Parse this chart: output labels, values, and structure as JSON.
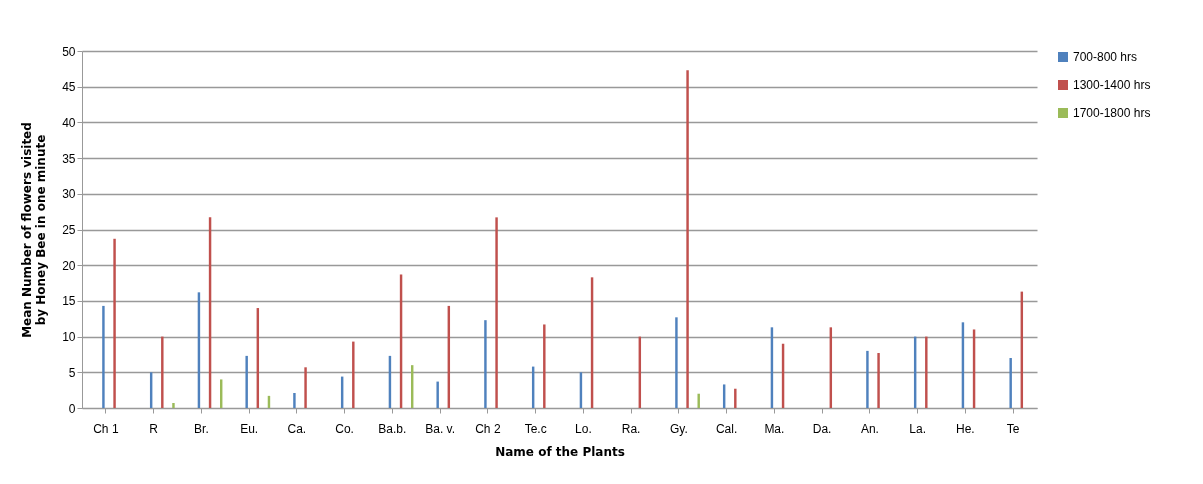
{
  "chart_data": {
    "type": "bar",
    "xlabel": "Name of the Plants",
    "ylabel": "Mean Number of flowers visited by Honey Bee in one minute",
    "categories": [
      "Ch 1",
      "R",
      "Br.",
      "Eu.",
      "Ca.",
      "Co.",
      "Ba.b.",
      "Ba. v.",
      "Ch 2",
      "Te.c",
      "Lo.",
      "Ra.",
      "Gy.",
      "Cal.",
      "Ma.",
      "Da.",
      "An.",
      "La.",
      "He.",
      "Te"
    ],
    "series": [
      {
        "name": "700-800 hrs",
        "color": "#4f81bd",
        "values": [
          14.3,
          5,
          16.2,
          7.3,
          2.1,
          4.4,
          7.3,
          3.7,
          12.3,
          5.8,
          5,
          0,
          12.7,
          3.3,
          11.3,
          0,
          8,
          10,
          12,
          7
        ]
      },
      {
        "name": "1300-1400 hrs",
        "color": "#c0504d",
        "values": [
          23.7,
          10,
          26.7,
          14,
          5.7,
          9.3,
          18.7,
          14.3,
          26.7,
          11.7,
          18.3,
          10,
          47.3,
          2.7,
          9,
          11.3,
          7.7,
          10,
          11,
          16.3
        ]
      },
      {
        "name": "1700-1800 hrs",
        "color": "#9bbb59",
        "values": [
          0,
          0.7,
          4,
          1.7,
          0,
          0,
          6,
          0,
          0,
          0,
          0,
          0,
          2,
          0,
          0,
          0,
          0,
          0,
          0,
          0
        ]
      }
    ],
    "ylim": [
      0,
      50
    ],
    "yticks": [
      0,
      5,
      10,
      15,
      20,
      25,
      30,
      35,
      40,
      45,
      50
    ],
    "grid": "y",
    "legend": "right"
  }
}
